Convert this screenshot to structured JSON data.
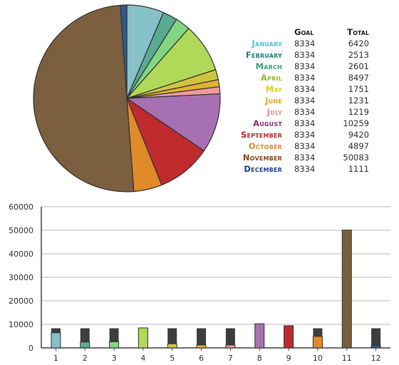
{
  "table": {
    "header_goal": "Goal",
    "header_total": "Total"
  },
  "chart_data": [
    {
      "type": "pie",
      "title": "",
      "categories": [
        "January",
        "February",
        "March",
        "April",
        "May",
        "June",
        "July",
        "August",
        "September",
        "October",
        "November",
        "December"
      ],
      "values": [
        6420,
        2513,
        2601,
        8497,
        1751,
        1231,
        1219,
        10259,
        9420,
        4897,
        50083,
        1111
      ],
      "colors": [
        "#86c0c9",
        "#5aa992",
        "#82d682",
        "#b0d95a",
        "#cfc43f",
        "#e0b22f",
        "#ef9a9f",
        "#a770b2",
        "#bf2a2e",
        "#e08a29",
        "#7b5f3e",
        "#2f5a8f"
      ],
      "label_colors": [
        "#4bc7cc",
        "#1f7f7a",
        "#3f9f77",
        "#8fbf2b",
        "#e1cf1a",
        "#e8a91a",
        "#ef8c8c",
        "#8b2d7a",
        "#c0262c",
        "#e08a29",
        "#8b4513",
        "#1f3f8f"
      ]
    },
    {
      "type": "table",
      "columns": [
        "",
        "Goal",
        "Total"
      ],
      "rows": [
        [
          "January",
          8334,
          6420
        ],
        [
          "February",
          8334,
          2513
        ],
        [
          "March",
          8334,
          2601
        ],
        [
          "April",
          8334,
          8497
        ],
        [
          "May",
          8334,
          1751
        ],
        [
          "June",
          8334,
          1231
        ],
        [
          "July",
          8334,
          1219
        ],
        [
          "August",
          8334,
          10259
        ],
        [
          "September",
          8334,
          9420
        ],
        [
          "October",
          8334,
          4897
        ],
        [
          "November",
          8334,
          50083
        ],
        [
          "December",
          8334,
          1111
        ]
      ]
    },
    {
      "type": "bar",
      "categories": [
        "1",
        "2",
        "3",
        "4",
        "5",
        "6",
        "7",
        "8",
        "9",
        "10",
        "11",
        "12"
      ],
      "series": [
        {
          "values": [
            8334,
            8334,
            8334,
            8334,
            8334,
            8334,
            8334,
            8334,
            8334,
            8334,
            8334,
            8334
          ],
          "color": "#3d3d3d"
        },
        {
          "values": [
            6420,
            2513,
            2601,
            8497,
            1751,
            1231,
            1219,
            10259,
            9420,
            4897,
            50083,
            1111
          ]
        }
      ],
      "yticks": [
        0,
        10000,
        20000,
        30000,
        40000,
        50000,
        60000
      ],
      "ylim": [
        0,
        60000
      ],
      "grid": true
    }
  ]
}
